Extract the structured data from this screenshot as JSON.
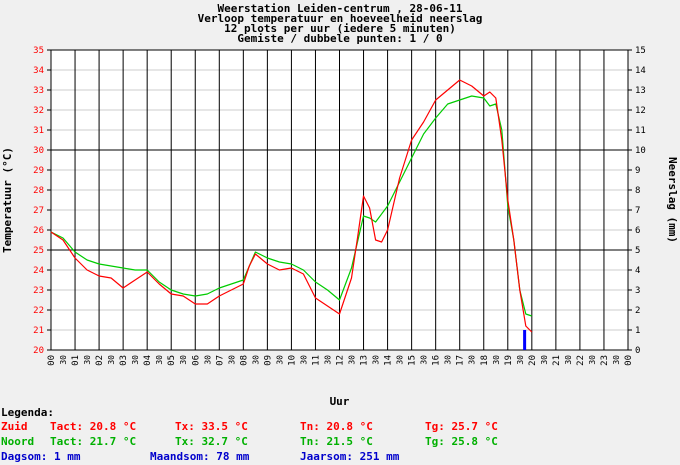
{
  "header": {
    "line1": "Weerstation Leiden-centrum , 28-06-11",
    "line2": "Verloop temperatuur en hoeveelheid neerslag",
    "line3": "12 plots per uur (iedere 5 minuten)",
    "line4": "Gemiste / dubbele punten: 1 / 0"
  },
  "legend": {
    "title": "Legenda:",
    "zuid": {
      "label": "Zuid",
      "tact": "Tact: 20.8 °C",
      "tx": "Tx: 33.5 °C",
      "tn": "Tn: 20.8 °C",
      "tg": "Tg: 25.7 °C"
    },
    "noord": {
      "label": "Noord",
      "tact": "Tact: 21.7 °C",
      "tx": "Tx: 32.7 °C",
      "tn": "Tn: 21.5 °C",
      "tg": "Tg: 25.8 °C"
    },
    "rain": {
      "dag": "Dagsom: 1 mm",
      "maand": "Maandsom: 78 mm",
      "jaar": "Jaarsom: 251 mm"
    }
  },
  "colors": {
    "zuid": "#ff0000",
    "noord": "#00cc00",
    "rain": "#0000ff",
    "left_axis": "#ff0000"
  },
  "chart_data": {
    "type": "line",
    "xlabel": "Uur",
    "ylabel": "Temperatuur (°C)",
    "y2label": "Neerslag (mm)",
    "ylim": [
      20,
      35
    ],
    "y2lim": [
      0,
      15
    ],
    "xlim": [
      0,
      24
    ],
    "y_ticks": [
      20,
      21,
      22,
      23,
      24,
      25,
      26,
      27,
      28,
      29,
      30,
      31,
      32,
      33,
      34,
      35
    ],
    "y2_ticks": [
      0,
      1,
      2,
      3,
      4,
      5,
      6,
      7,
      8,
      9,
      10,
      11,
      12,
      13,
      14,
      15
    ],
    "x_ticks": [
      "00",
      "01",
      "02",
      "03",
      "04",
      "05",
      "06",
      "07",
      "08",
      "09",
      "10",
      "11",
      "12",
      "13",
      "14",
      "15",
      "16",
      "17",
      "18",
      "19",
      "20",
      "21",
      "22",
      "23",
      "00"
    ],
    "x_half_label": "30",
    "series": [
      {
        "name": "Zuid",
        "color": "#ff0000",
        "x": [
          0,
          0.5,
          1,
          1.5,
          2,
          2.5,
          3,
          3.5,
          4,
          4.5,
          5,
          5.5,
          6,
          6.5,
          7,
          7.5,
          8,
          8.25,
          8.5,
          9,
          9.5,
          10,
          10.5,
          11,
          11.5,
          12,
          12.5,
          12.75,
          13,
          13.25,
          13.5,
          13.75,
          14,
          14.5,
          15,
          15.5,
          16,
          16.5,
          17,
          17.5,
          18,
          18.25,
          18.5,
          18.75,
          19,
          19.25,
          19.5,
          19.75,
          20
        ],
        "y": [
          25.9,
          25.5,
          24.6,
          24.0,
          23.7,
          23.6,
          23.1,
          23.5,
          23.9,
          23.3,
          22.8,
          22.7,
          22.3,
          22.3,
          22.7,
          23.0,
          23.3,
          24.2,
          24.8,
          24.3,
          24.0,
          24.1,
          23.8,
          22.6,
          22.2,
          21.8,
          23.6,
          25.6,
          27.7,
          27.1,
          25.5,
          25.4,
          26.0,
          28.6,
          30.5,
          31.4,
          32.5,
          33.0,
          33.5,
          33.2,
          32.7,
          32.9,
          32.6,
          30.5,
          27.5,
          25.5,
          23.0,
          21.2,
          20.9
        ]
      },
      {
        "name": "Noord",
        "color": "#00cc00",
        "x": [
          0,
          0.5,
          1,
          1.5,
          2,
          2.5,
          3,
          3.5,
          4,
          4.5,
          5,
          5.5,
          6,
          6.5,
          7,
          7.5,
          8,
          8.5,
          9,
          9.5,
          10,
          10.5,
          11,
          11.5,
          12,
          12.5,
          13,
          13.25,
          13.5,
          14,
          14.5,
          15,
          15.5,
          16,
          16.5,
          17,
          17.5,
          18,
          18.25,
          18.5,
          18.75,
          19,
          19.25,
          19.5,
          19.75,
          20
        ],
        "y": [
          25.9,
          25.6,
          24.9,
          24.5,
          24.3,
          24.2,
          24.1,
          24.0,
          24.0,
          23.4,
          23.0,
          22.8,
          22.7,
          22.8,
          23.1,
          23.3,
          23.5,
          24.9,
          24.6,
          24.4,
          24.3,
          24.0,
          23.4,
          23.0,
          22.5,
          24.1,
          26.7,
          26.6,
          26.4,
          27.2,
          28.4,
          29.6,
          30.8,
          31.6,
          32.3,
          32.5,
          32.7,
          32.6,
          32.2,
          32.3,
          31.0,
          27.2,
          25.5,
          23.0,
          21.8,
          21.7
        ]
      }
    ],
    "rain_bars": [
      {
        "x": 19.7,
        "mm": 1
      }
    ]
  }
}
